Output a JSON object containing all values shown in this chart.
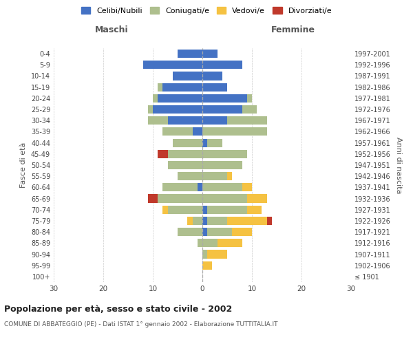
{
  "age_groups": [
    "100+",
    "95-99",
    "90-94",
    "85-89",
    "80-84",
    "75-79",
    "70-74",
    "65-69",
    "60-64",
    "55-59",
    "50-54",
    "45-49",
    "40-44",
    "35-39",
    "30-34",
    "25-29",
    "20-24",
    "15-19",
    "10-14",
    "5-9",
    "0-4"
  ],
  "birth_years": [
    "≤ 1901",
    "1902-1906",
    "1907-1911",
    "1912-1916",
    "1917-1921",
    "1922-1926",
    "1927-1931",
    "1932-1936",
    "1937-1941",
    "1942-1946",
    "1947-1951",
    "1952-1956",
    "1957-1961",
    "1962-1966",
    "1967-1971",
    "1972-1976",
    "1977-1981",
    "1982-1986",
    "1987-1991",
    "1992-1996",
    "1997-2001"
  ],
  "males": {
    "celibi": [
      0,
      0,
      0,
      0,
      0,
      0,
      0,
      0,
      1,
      0,
      0,
      0,
      0,
      2,
      7,
      10,
      9,
      8,
      6,
      12,
      5
    ],
    "coniugati": [
      0,
      0,
      0,
      1,
      5,
      2,
      7,
      9,
      7,
      5,
      7,
      7,
      6,
      6,
      4,
      1,
      1,
      1,
      0,
      0,
      0
    ],
    "vedovi": [
      0,
      0,
      0,
      0,
      0,
      1,
      1,
      0,
      0,
      0,
      0,
      0,
      0,
      0,
      0,
      0,
      0,
      0,
      0,
      0,
      0
    ],
    "divorziati": [
      0,
      0,
      0,
      0,
      0,
      0,
      0,
      2,
      0,
      0,
      0,
      2,
      0,
      0,
      0,
      0,
      0,
      0,
      0,
      0,
      0
    ]
  },
  "females": {
    "nubili": [
      0,
      0,
      0,
      0,
      1,
      1,
      1,
      0,
      0,
      0,
      0,
      0,
      1,
      0,
      5,
      8,
      9,
      5,
      4,
      8,
      3
    ],
    "coniugate": [
      0,
      0,
      1,
      3,
      5,
      4,
      8,
      9,
      8,
      5,
      8,
      9,
      3,
      13,
      8,
      3,
      1,
      0,
      0,
      0,
      0
    ],
    "vedove": [
      0,
      2,
      4,
      5,
      4,
      8,
      3,
      4,
      2,
      1,
      0,
      0,
      0,
      0,
      0,
      0,
      0,
      0,
      0,
      0,
      0
    ],
    "divorziate": [
      0,
      0,
      0,
      0,
      0,
      1,
      0,
      0,
      0,
      0,
      0,
      0,
      0,
      0,
      0,
      0,
      0,
      0,
      0,
      0,
      0
    ]
  },
  "colors": {
    "celibi_nubili": "#4472C4",
    "coniugati": "#AEBF8E",
    "vedovi": "#F5C242",
    "divorziati": "#C0392B"
  },
  "title": "Popolazione per età, sesso e stato civile - 2002",
  "subtitle": "COMUNE DI ABBATEGGIO (PE) - Dati ISTAT 1° gennaio 2002 - Elaborazione TUTTITALIA.IT",
  "xlabel_left": "Maschi",
  "xlabel_right": "Femmine",
  "ylabel_left": "Fasce di età",
  "ylabel_right": "Anni di nascita",
  "xlim": 30,
  "legend_labels": [
    "Celibi/Nubili",
    "Coniugati/e",
    "Vedovi/e",
    "Divorziati/e"
  ]
}
